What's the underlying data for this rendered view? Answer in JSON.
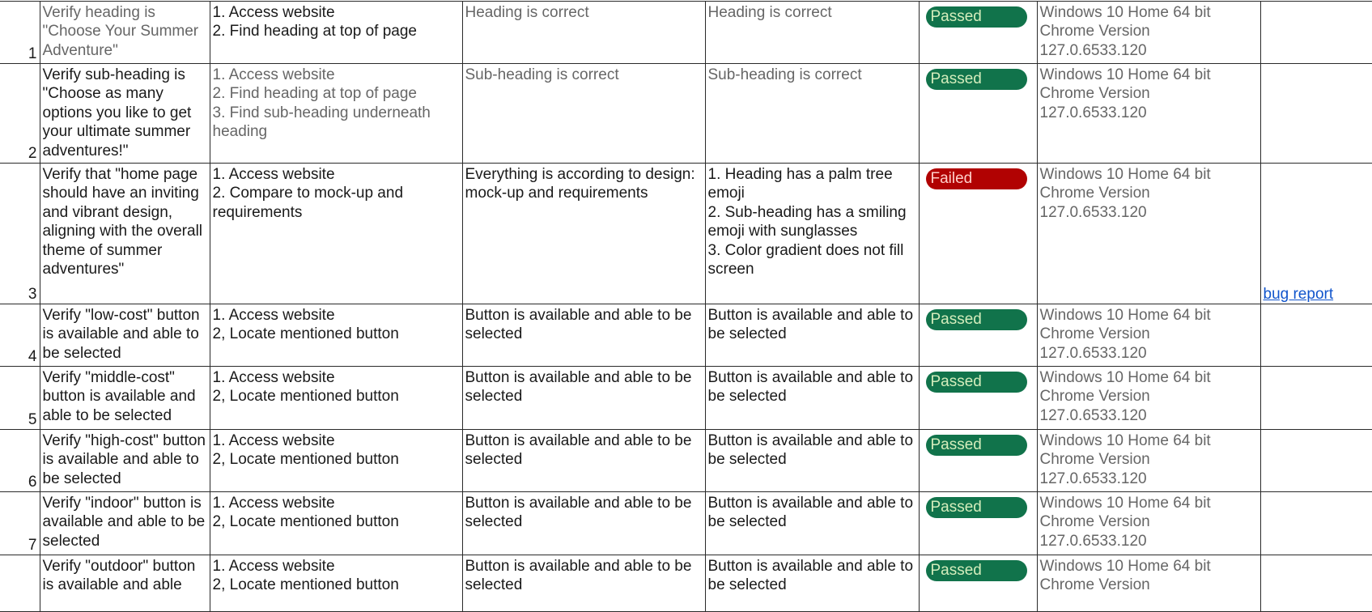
{
  "colors": {
    "passed_bg": "#11734b",
    "passed_text": "#d4edbc",
    "failed_bg": "#b10202",
    "failed_text": "#ffcfc9",
    "link": "#1155cc"
  },
  "rows": [
    {
      "num": "1",
      "description": "Verify heading is \"Choose Your Summer Adventure\"",
      "steps": "1. Access website\n2. Find heading at top of page",
      "expected": "Heading is correct",
      "actual": "Heading is correct",
      "status": "Passed",
      "environment": "Windows 10 Home 64 bit\nChrome Version\n127.0.6533.120",
      "link": ""
    },
    {
      "num": "2",
      "description": "Verify sub-heading is \"Choose as many options you like to get your ultimate summer adventures!\"",
      "steps": "1. Access website\n2. Find heading at top of page\n3. Find sub-heading underneath heading",
      "expected": "Sub-heading is correct",
      "actual": "Sub-heading is correct",
      "status": "Passed",
      "environment": "Windows 10 Home 64 bit\nChrome Version\n127.0.6533.120",
      "link": ""
    },
    {
      "num": "3",
      "description": "Verify that \"home page should have an inviting and vibrant design, aligning with the overall theme of summer adventures\"",
      "steps": "1. Access website\n2. Compare to mock-up and requirements",
      "expected": "Everything is according to design: mock-up and requirements",
      "actual": "1. Heading has a palm tree emoji\n2. Sub-heading has a smiling emoji with sunglasses\n3. Color gradient does not fill screen",
      "status": "Failed",
      "environment": "Windows 10 Home 64 bit\nChrome Version\n127.0.6533.120",
      "link": "bug report"
    },
    {
      "num": "4",
      "description": "Verify \"low-cost\" button is available and able to be selected",
      "steps": "1. Access website\n2, Locate mentioned button",
      "expected": "Button is available and able to be selected",
      "actual": "Button is available and able to be selected",
      "status": "Passed",
      "environment": "Windows 10 Home 64 bit\nChrome Version\n127.0.6533.120",
      "link": ""
    },
    {
      "num": "5",
      "description": "Verify \"middle-cost\" button is available and able to be selected",
      "steps": "1. Access website\n2, Locate mentioned button",
      "expected": "Button is available and able to be selected",
      "actual": "Button is available and able to be selected",
      "status": "Passed",
      "environment": "Windows 10 Home 64 bit\nChrome Version\n127.0.6533.120",
      "link": ""
    },
    {
      "num": "6",
      "description": "Verify \"high-cost\" button is available and able to be selected",
      "steps": "1. Access website\n2, Locate mentioned button",
      "expected": "Button is available and able to be selected",
      "actual": "Button is available and able to be selected",
      "status": "Passed",
      "environment": "Windows 10 Home 64 bit\nChrome Version\n127.0.6533.120",
      "link": ""
    },
    {
      "num": "7",
      "description": "Verify \"indoor\" button is available and able to be selected",
      "steps": "1. Access website\n2, Locate mentioned button",
      "expected": "Button is available and able to be selected",
      "actual": "Button is available and able to be selected",
      "status": "Passed",
      "environment": "Windows 10 Home 64 bit\nChrome Version\n127.0.6533.120",
      "link": ""
    },
    {
      "num": "",
      "description": "Verify \"outdoor\" button is available and able",
      "steps": "1. Access website\n2, Locate mentioned button",
      "expected": "Button is available and able to be selected",
      "actual": "Button is available and able to be selected",
      "status": "Passed",
      "environment": "Windows 10 Home 64 bit\nChrome Version",
      "link": ""
    }
  ]
}
